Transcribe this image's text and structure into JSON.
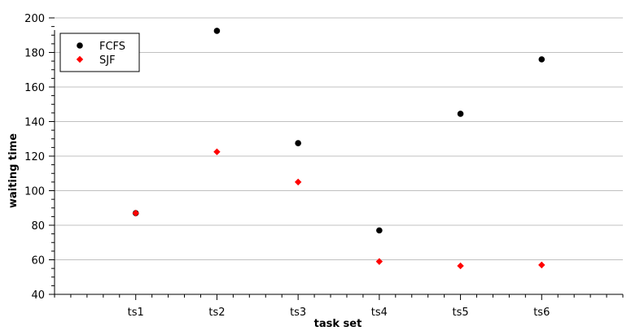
{
  "chart_data": {
    "type": "scatter",
    "title": "",
    "xlabel": "task set",
    "ylabel": "waiting time",
    "categories": [
      "ts1",
      "ts2",
      "ts3",
      "ts4",
      "ts5",
      "ts6"
    ],
    "x_range": [
      0,
      7
    ],
    "ylim": [
      40,
      200
    ],
    "y_ticks": [
      "40",
      "60",
      "80",
      "100",
      "120",
      "140",
      "160",
      "180",
      "200"
    ],
    "grid": "horizontal",
    "legend_position": "top-left",
    "series": [
      {
        "name": "FCFS",
        "marker": "circle",
        "color": "#000000",
        "values": [
          87,
          192.5,
          127.5,
          77,
          144.5,
          176
        ]
      },
      {
        "name": "SJF",
        "marker": "diamond",
        "color": "#ff0000",
        "values": [
          87,
          122.5,
          105,
          59,
          56.5,
          57
        ]
      }
    ]
  }
}
